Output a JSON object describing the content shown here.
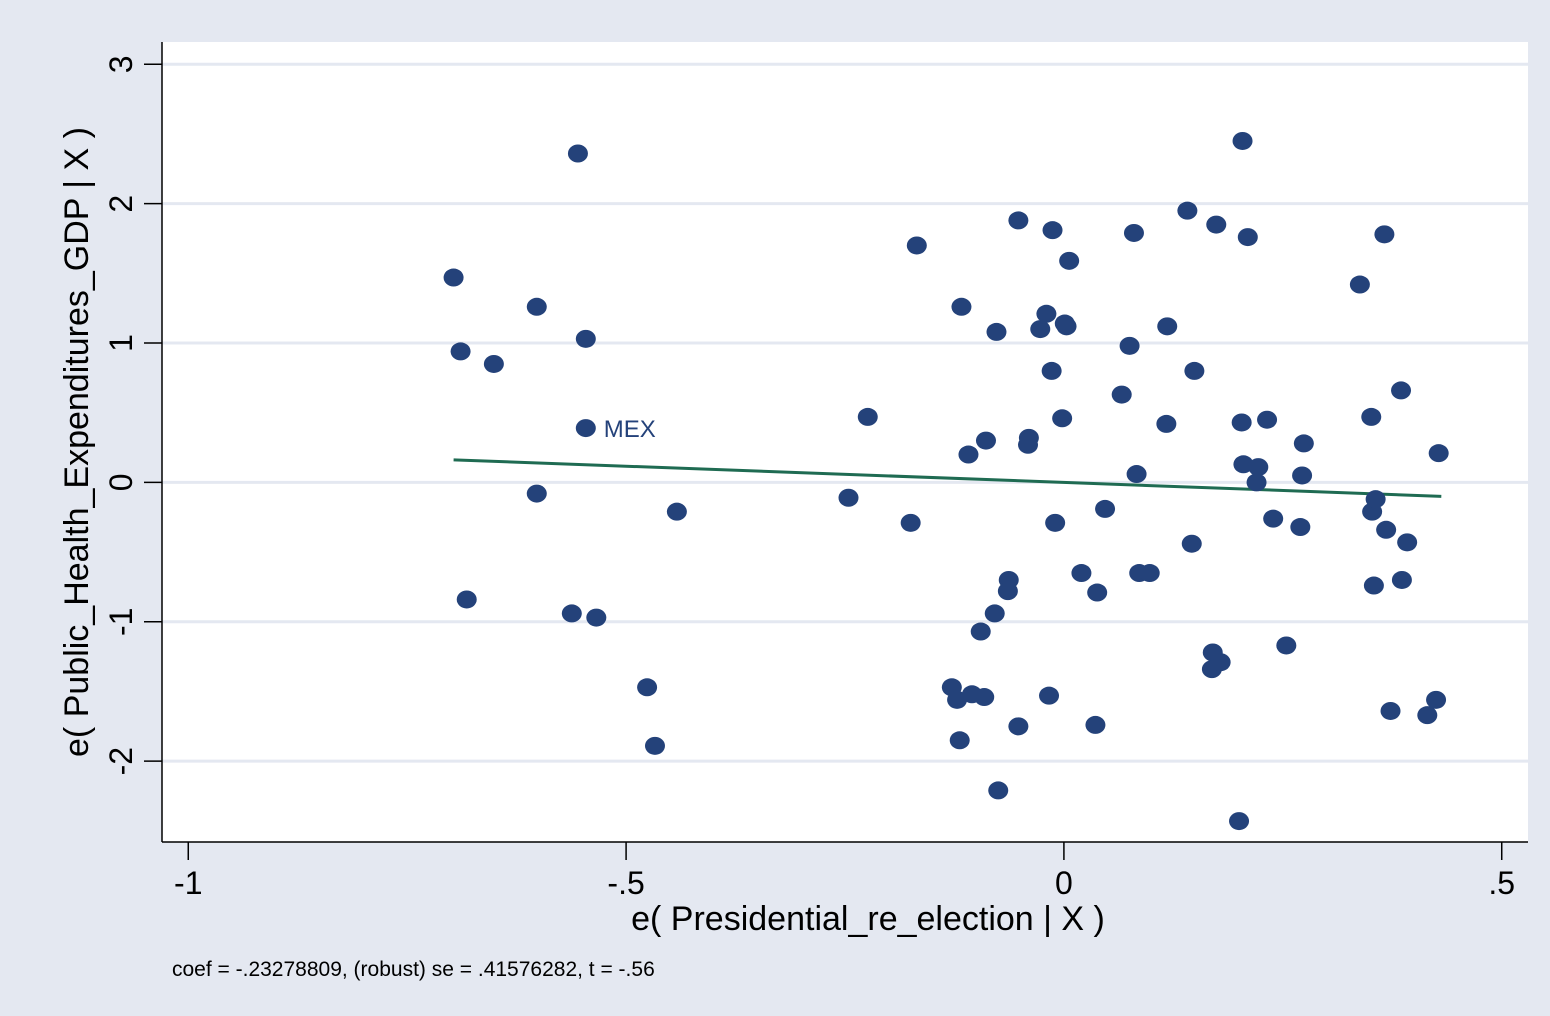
{
  "chart_data": {
    "type": "scatter",
    "title": "",
    "xlabel": "e( Presidential_re_election | X )",
    "ylabel": "e( Public_Health_Expenditures_GDP | X )",
    "xlim": [
      -1.03,
      0.53
    ],
    "ylim": [
      -2.58,
      3.16
    ],
    "x_ticks": [
      -1,
      -0.5,
      0,
      0.5
    ],
    "x_tick_labels": [
      "-1",
      "-.5",
      "0",
      ".5"
    ],
    "y_ticks": [
      -2,
      -1,
      0,
      1,
      2,
      3
    ],
    "y_tick_labels": [
      "-2",
      "-1",
      "0",
      "1",
      "2",
      "3"
    ],
    "grid": true,
    "note": "coef = -.23278809, (robust) se = .41576282, t = -.56",
    "colors": {
      "background": "#e4e8f1",
      "plot_area": "#ffffff",
      "gridline": "#e4e8f1",
      "marker": "#24427a",
      "fit_line": "#1f6b52",
      "label": "#24427a"
    },
    "fit_line": {
      "x": [
        -0.697,
        0.431
      ],
      "y": [
        0.162,
        -0.1
      ]
    },
    "labeled_points": [
      {
        "x": -0.546,
        "y": 0.39,
        "label": "MEX"
      }
    ],
    "points": [
      [
        -0.697,
        1.47
      ],
      [
        -0.689,
        0.94
      ],
      [
        -0.682,
        -0.84
      ],
      [
        -0.651,
        0.85
      ],
      [
        -0.602,
        1.26
      ],
      [
        -0.602,
        -0.08
      ],
      [
        -0.555,
        2.36
      ],
      [
        -0.562,
        -0.94
      ],
      [
        -0.546,
        1.03
      ],
      [
        -0.534,
        -0.97
      ],
      [
        -0.476,
        -1.47
      ],
      [
        -0.467,
        -1.89
      ],
      [
        -0.442,
        -0.21
      ],
      [
        -0.246,
        -0.11
      ],
      [
        -0.224,
        0.47
      ],
      [
        -0.175,
        -0.29
      ],
      [
        -0.168,
        1.7
      ],
      [
        -0.128,
        -1.47
      ],
      [
        -0.122,
        -1.56
      ],
      [
        -0.117,
        1.26
      ],
      [
        -0.119,
        -1.85
      ],
      [
        -0.109,
        0.2
      ],
      [
        -0.105,
        -1.52
      ],
      [
        -0.095,
        -1.07
      ],
      [
        -0.089,
        0.3
      ],
      [
        -0.091,
        -1.54
      ],
      [
        -0.077,
        1.08
      ],
      [
        -0.079,
        -0.94
      ],
      [
        -0.075,
        -2.21
      ],
      [
        -0.063,
        -0.7
      ],
      [
        -0.064,
        -0.78
      ],
      [
        -0.052,
        1.88
      ],
      [
        -0.052,
        -1.75
      ],
      [
        -0.04,
        0.32
      ],
      [
        -0.041,
        0.27
      ],
      [
        -0.027,
        1.1
      ],
      [
        -0.02,
        1.21
      ],
      [
        -0.017,
        -1.53
      ],
      [
        -0.014,
        0.8
      ],
      [
        -0.013,
        1.81
      ],
      [
        -0.01,
        -0.29
      ],
      [
        -0.002,
        0.46
      ],
      [
        0.001,
        1.14
      ],
      [
        0.003,
        1.12
      ],
      [
        0.006,
        1.59
      ],
      [
        0.02,
        -0.65
      ],
      [
        0.036,
        -1.74
      ],
      [
        0.038,
        -0.79
      ],
      [
        0.047,
        -0.19
      ],
      [
        0.066,
        0.63
      ],
      [
        0.075,
        0.98
      ],
      [
        0.08,
        1.79
      ],
      [
        0.083,
        0.06
      ],
      [
        0.086,
        -0.65
      ],
      [
        0.098,
        -0.65
      ],
      [
        0.118,
        1.12
      ],
      [
        0.117,
        0.42
      ],
      [
        0.141,
        1.95
      ],
      [
        0.146,
        -0.44
      ],
      [
        0.149,
        0.8
      ],
      [
        0.17,
        -1.22
      ],
      [
        0.169,
        -1.34
      ],
      [
        0.174,
        1.85
      ],
      [
        0.179,
        -1.29
      ],
      [
        0.203,
        0.43
      ],
      [
        0.204,
        2.45
      ],
      [
        0.205,
        0.13
      ],
      [
        0.2,
        -2.43
      ],
      [
        0.21,
        1.76
      ],
      [
        0.22,
        0.0
      ],
      [
        0.222,
        0.11
      ],
      [
        0.232,
        0.45
      ],
      [
        0.239,
        -0.26
      ],
      [
        0.254,
        -1.17
      ],
      [
        0.27,
        -0.32
      ],
      [
        0.272,
        0.05
      ],
      [
        0.274,
        0.28
      ],
      [
        0.338,
        1.42
      ],
      [
        0.351,
        0.47
      ],
      [
        0.352,
        -0.21
      ],
      [
        0.354,
        -0.74
      ],
      [
        0.356,
        -0.12
      ],
      [
        0.366,
        1.78
      ],
      [
        0.368,
        -0.34
      ],
      [
        0.373,
        -1.64
      ],
      [
        0.385,
        0.66
      ],
      [
        0.386,
        -0.7
      ],
      [
        0.392,
        -0.43
      ],
      [
        0.415,
        -1.67
      ],
      [
        0.425,
        -1.56
      ],
      [
        0.428,
        0.21
      ]
    ]
  }
}
